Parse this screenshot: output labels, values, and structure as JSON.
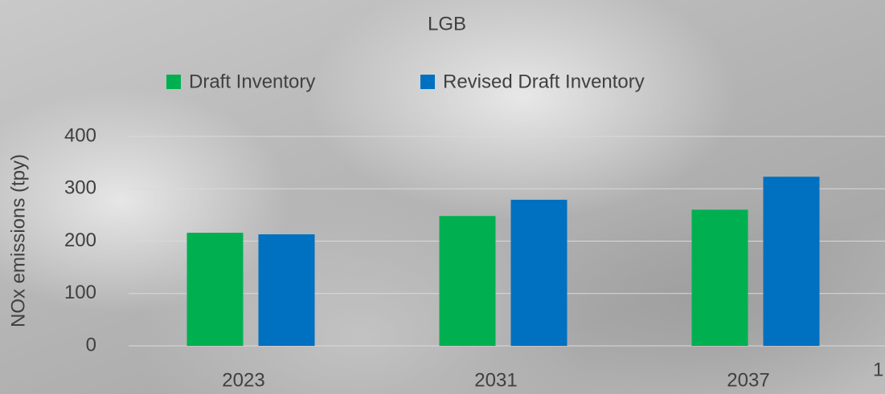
{
  "chart_data": {
    "type": "bar",
    "title": "LGB",
    "y_label": "NOx emissions (tpy)",
    "categories": [
      "2023",
      "2031",
      "2037"
    ],
    "series": [
      {
        "name": "Draft Inventory",
        "color": "#00b050",
        "values": [
          216,
          248,
          260
        ]
      },
      {
        "name": "Revised Draft Inventory",
        "color": "#0070c0",
        "values": [
          213,
          279,
          323
        ]
      }
    ],
    "ylim": [
      0,
      400
    ],
    "yticks": [
      0,
      100,
      200,
      300,
      400
    ],
    "grid": true,
    "legend": "top"
  },
  "page_number": "1"
}
